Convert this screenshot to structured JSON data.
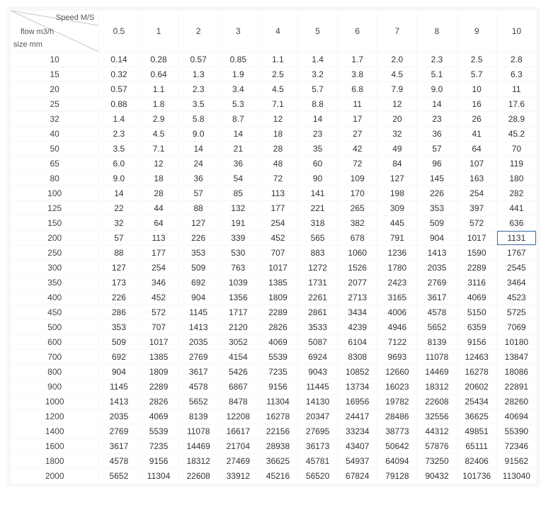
{
  "corner": {
    "top": "Speed M/S",
    "mid": "flow m3/h",
    "bot": "size mm"
  },
  "speeds": [
    "0.5",
    "1",
    "2",
    "3",
    "4",
    "5",
    "6",
    "7",
    "8",
    "9",
    "10"
  ],
  "sizes": [
    "10",
    "15",
    "20",
    "25",
    "32",
    "40",
    "50",
    "65",
    "80",
    "100",
    "125",
    "150",
    "200",
    "250",
    "300",
    "350",
    "400",
    "450",
    "500",
    "600",
    "700",
    "800",
    "900",
    "1000",
    "1200",
    "1400",
    "1600",
    "1800",
    "2000"
  ],
  "rows": [
    [
      "0.14",
      "0.28",
      "0.57",
      "0.85",
      "1.1",
      "1.4",
      "1.7",
      "2.0",
      "2.3",
      "2.5",
      "2.8"
    ],
    [
      "0.32",
      "0.64",
      "1.3",
      "1.9",
      "2.5",
      "3.2",
      "3.8",
      "4.5",
      "5.1",
      "5.7",
      "6.3"
    ],
    [
      "0.57",
      "1.1",
      "2.3",
      "3.4",
      "4.5",
      "5.7",
      "6.8",
      "7.9",
      "9.0",
      "10",
      "11"
    ],
    [
      "0.88",
      "1.8",
      "3.5",
      "5.3",
      "7.1",
      "8.8",
      "11",
      "12",
      "14",
      "16",
      "17.6"
    ],
    [
      "1.4",
      "2.9",
      "5.8",
      "8.7",
      "12",
      "14",
      "17",
      "20",
      "23",
      "26",
      "28.9"
    ],
    [
      "2.3",
      "4.5",
      "9.0",
      "14",
      "18",
      "23",
      "27",
      "32",
      "36",
      "41",
      "45.2"
    ],
    [
      "3.5",
      "7.1",
      "14",
      "21",
      "28",
      "35",
      "42",
      "49",
      "57",
      "64",
      "70"
    ],
    [
      "6.0",
      "12",
      "24",
      "36",
      "48",
      "60",
      "72",
      "84",
      "96",
      "107",
      "119"
    ],
    [
      "9.0",
      "18",
      "36",
      "54",
      "72",
      "90",
      "109",
      "127",
      "145",
      "163",
      "180"
    ],
    [
      "14",
      "28",
      "57",
      "85",
      "113",
      "141",
      "170",
      "198",
      "226",
      "254",
      "282"
    ],
    [
      "22",
      "44",
      "88",
      "132",
      "177",
      "221",
      "265",
      "309",
      "353",
      "397",
      "441"
    ],
    [
      "32",
      "64",
      "127",
      "191",
      "254",
      "318",
      "382",
      "445",
      "509",
      "572",
      "636"
    ],
    [
      "57",
      "113",
      "226",
      "339",
      "452",
      "565",
      "678",
      "791",
      "904",
      "1017",
      "1131"
    ],
    [
      "88",
      "177",
      "353",
      "530",
      "707",
      "883",
      "1060",
      "1236",
      "1413",
      "1590",
      "1767"
    ],
    [
      "127",
      "254",
      "509",
      "763",
      "1017",
      "1272",
      "1526",
      "1780",
      "2035",
      "2289",
      "2545"
    ],
    [
      "173",
      "346",
      "692",
      "1039",
      "1385",
      "1731",
      "2077",
      "2423",
      "2769",
      "3116",
      "3464"
    ],
    [
      "226",
      "452",
      "904",
      "1356",
      "1809",
      "2261",
      "2713",
      "3165",
      "3617",
      "4069",
      "4523"
    ],
    [
      "286",
      "572",
      "1145",
      "1717",
      "2289",
      "2861",
      "3434",
      "4006",
      "4578",
      "5150",
      "5725"
    ],
    [
      "353",
      "707",
      "1413",
      "2120",
      "2826",
      "3533",
      "4239",
      "4946",
      "5652",
      "6359",
      "7069"
    ],
    [
      "509",
      "1017",
      "2035",
      "3052",
      "4069",
      "5087",
      "6104",
      "7122",
      "8139",
      "9156",
      "10180"
    ],
    [
      "692",
      "1385",
      "2769",
      "4154",
      "5539",
      "6924",
      "8308",
      "9693",
      "11078",
      "12463",
      "13847"
    ],
    [
      "904",
      "1809",
      "3617",
      "5426",
      "7235",
      "9043",
      "10852",
      "12660",
      "14469",
      "16278",
      "18086"
    ],
    [
      "1145",
      "2289",
      "4578",
      "6867",
      "9156",
      "11445",
      "13734",
      "16023",
      "18312",
      "20602",
      "22891"
    ],
    [
      "1413",
      "2826",
      "5652",
      "8478",
      "11304",
      "14130",
      "16956",
      "19782",
      "22608",
      "25434",
      "28260"
    ],
    [
      "2035",
      "4069",
      "8139",
      "12208",
      "16278",
      "20347",
      "24417",
      "28486",
      "32556",
      "36625",
      "40694"
    ],
    [
      "2769",
      "5539",
      "11078",
      "16617",
      "22156",
      "27695",
      "33234",
      "38773",
      "44312",
      "49851",
      "55390"
    ],
    [
      "3617",
      "7235",
      "14469",
      "21704",
      "28938",
      "36173",
      "43407",
      "50642",
      "57876",
      "65111",
      "72346"
    ],
    [
      "4578",
      "9156",
      "18312",
      "27469",
      "36625",
      "45781",
      "54937",
      "64094",
      "73250",
      "82406",
      "91562"
    ],
    [
      "5652",
      "11304",
      "22608",
      "33912",
      "45216",
      "56520",
      "67824",
      "79128",
      "90432",
      "101736",
      "113040"
    ]
  ],
  "highlight": {
    "row": 12,
    "col": 10
  },
  "style": {
    "cell_bg": "#ffffff",
    "wrap_bg": "#f7f7f7",
    "text_color": "#333333",
    "highlight_border": "#3b6ea5",
    "font_size_pt": 12,
    "diag_color": "#bbbbbb"
  }
}
